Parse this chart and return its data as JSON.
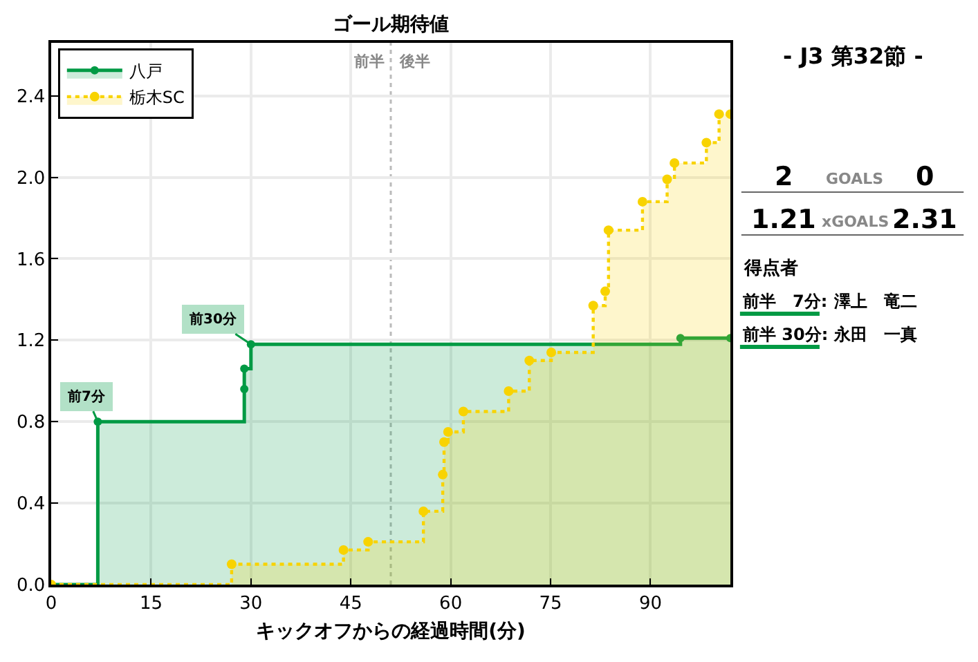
{
  "chart_data": [
    {
      "type": "step",
      "title": "ゴール期待値",
      "xlabel": "キックオフからの経過時間(分)",
      "xlim": [
        0,
        102
      ],
      "xticks": [
        0,
        15,
        30,
        45,
        60,
        75,
        90
      ],
      "ylim": [
        0,
        2.66
      ],
      "yticks": [
        {
          "value": 0,
          "label": "0.0"
        },
        0.4,
        0.8,
        1.2,
        1.6,
        {
          "value": 2,
          "label": "2.0"
        },
        2.4
      ],
      "grid": true,
      "legend": "top left",
      "marker": "circle",
      "series": [
        {
          "name": "八戸",
          "color": "#009a44",
          "line_style": "solid",
          "x": [
            0,
            7,
            29,
            29,
            30,
            94.5,
            102
          ],
          "values": [
            0,
            0.8,
            0.96,
            1.06,
            1.18,
            1.21,
            1.21
          ]
        },
        {
          "name": "栃木SC",
          "color": "#f8d300",
          "line_style": "dotted",
          "x": [
            0,
            27.1,
            43.9,
            47.6,
            55.9,
            58.8,
            59,
            59.6,
            61.9,
            68.7,
            71.8,
            75.1,
            81.4,
            83.2,
            83.7,
            88.8,
            92.5,
            93.6,
            98.4,
            100.3,
            102
          ],
          "values": [
            0,
            0.1,
            0.17,
            0.21,
            0.36,
            0.54,
            0.7,
            0.75,
            0.85,
            0.95,
            1.1,
            1.14,
            1.37,
            1.44,
            1.74,
            1.88,
            1.99,
            2.07,
            2.17,
            2.31,
            2.31
          ]
        }
      ],
      "ref_lines": [
        {
          "axis": "x",
          "value": 51,
          "label": "前半　後半",
          "color": "#bbbbbb",
          "line_style": "dotted"
        }
      ],
      "annotations": [
        {
          "text": "前7分",
          "x": 7,
          "y": 0.8
        },
        {
          "text": "前30分",
          "x": 30,
          "y": 1.18
        }
      ]
    },
    {
      "type": "other",
      "title": "- J3 第32節 -",
      "categories": [
        "GOALS",
        "xGOALS"
      ],
      "series": [
        {
          "values": [
            2,
            1.21
          ]
        },
        {
          "values": [
            0,
            2.31
          ]
        }
      ],
      "data_labels": true,
      "annotations": [
        "得点者",
        "前半　7分:",
        "澤上　竜二",
        "前半 30分:",
        "永田　一真"
      ]
    }
  ]
}
